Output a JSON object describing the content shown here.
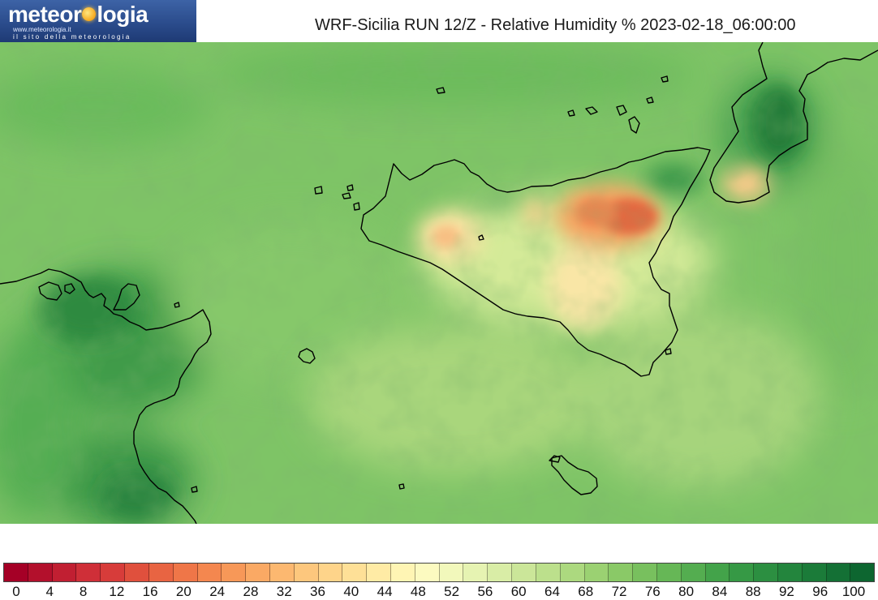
{
  "logo": {
    "brand_left": "meteor",
    "brand_right": "logia",
    "sun_icon": "sun-icon",
    "url": "www.meteorologia.it",
    "tagline": "il sito della meteorologia"
  },
  "title": "WRF-Sicilia RUN 12/Z - Relative Humidity % 2023-02-18_06:00:00",
  "map": {
    "region": "Sicily, Malta, Calabria and Tunisian coast",
    "variable": "Relative Humidity %",
    "colors": {
      "dry": "#d7191c",
      "mid": "#ffffbf",
      "humid": "#1a7a3c",
      "coastline": "#000000"
    }
  },
  "colorbar": {
    "tick_labels": [
      "0",
      "4",
      "8",
      "12",
      "16",
      "20",
      "24",
      "28",
      "32",
      "36",
      "40",
      "44",
      "48",
      "52",
      "56",
      "60",
      "64",
      "68",
      "72",
      "76",
      "80",
      "84",
      "88",
      "92",
      "96",
      "100"
    ],
    "colors": [
      "#a50026",
      "#b3102c",
      "#c11f32",
      "#cf2f38",
      "#d73c3a",
      "#e0503d",
      "#e86442",
      "#ef7648",
      "#f4874f",
      "#f79858",
      "#faa964",
      "#fcb870",
      "#fdc77d",
      "#fed48a",
      "#fee097",
      "#ffeba5",
      "#fff5b4",
      "#fcfac0",
      "#f2f8bb",
      "#e6f3b2",
      "#d9eda6",
      "#cbe699",
      "#bce08c",
      "#acd97f",
      "#9bd172",
      "#8ac967",
      "#78c05e",
      "#66b756",
      "#54ad50",
      "#43a34a",
      "#369945",
      "#2c8f41",
      "#23853d",
      "#1b7b39",
      "#147035",
      "#0d6630"
    ]
  }
}
